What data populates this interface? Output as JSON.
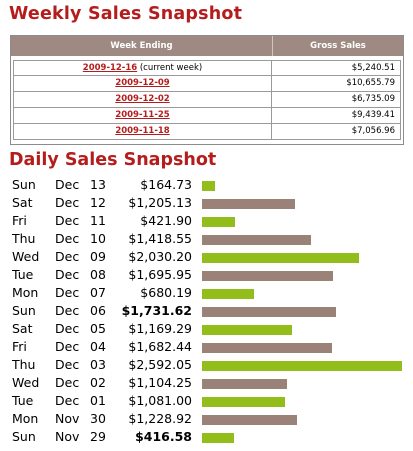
{
  "colors": {
    "title_red": "#b51d1d",
    "header_bg": "#9e8a82",
    "link_red": "#b51d1d",
    "bar_green": "#93bd1a",
    "bar_brown": "#9a8279"
  },
  "weekly": {
    "title": "Weekly Sales Snapshot",
    "col_week": "Week Ending",
    "col_gross": "Gross Sales",
    "rows": [
      {
        "date": "2009-12-16",
        "note": " (current week)",
        "gross": "$5,240.51"
      },
      {
        "date": "2009-12-09",
        "note": "",
        "gross": "$10,655.79"
      },
      {
        "date": "2009-12-02",
        "note": "",
        "gross": "$6,735.09"
      },
      {
        "date": "2009-11-25",
        "note": "",
        "gross": "$9,439.41"
      },
      {
        "date": "2009-11-18",
        "note": "",
        "gross": "$7,056.96"
      }
    ]
  },
  "daily": {
    "title": "Daily Sales Snapshot",
    "rows": [
      {
        "dow": "Sun",
        "mon": "Dec",
        "day": "13",
        "amount": "$164.73",
        "value": 164.73,
        "bold": false,
        "color": "green"
      },
      {
        "dow": "Sat",
        "mon": "Dec",
        "day": "12",
        "amount": "$1,205.13",
        "value": 1205.13,
        "bold": false,
        "color": "brown"
      },
      {
        "dow": "Fri",
        "mon": "Dec",
        "day": "11",
        "amount": "$421.90",
        "value": 421.9,
        "bold": false,
        "color": "green"
      },
      {
        "dow": "Thu",
        "mon": "Dec",
        "day": "10",
        "amount": "$1,418.55",
        "value": 1418.55,
        "bold": false,
        "color": "brown"
      },
      {
        "dow": "Wed",
        "mon": "Dec",
        "day": "09",
        "amount": "$2,030.20",
        "value": 2030.2,
        "bold": false,
        "color": "green"
      },
      {
        "dow": "Tue",
        "mon": "Dec",
        "day": "08",
        "amount": "$1,695.95",
        "value": 1695.95,
        "bold": false,
        "color": "brown"
      },
      {
        "dow": "Mon",
        "mon": "Dec",
        "day": "07",
        "amount": "$680.19",
        "value": 680.19,
        "bold": false,
        "color": "green"
      },
      {
        "dow": "Sun",
        "mon": "Dec",
        "day": "06",
        "amount": "$1,731.62",
        "value": 1731.62,
        "bold": true,
        "color": "brown"
      },
      {
        "dow": "Sat",
        "mon": "Dec",
        "day": "05",
        "amount": "$1,169.29",
        "value": 1169.29,
        "bold": false,
        "color": "green"
      },
      {
        "dow": "Fri",
        "mon": "Dec",
        "day": "04",
        "amount": "$1,682.44",
        "value": 1682.44,
        "bold": false,
        "color": "brown"
      },
      {
        "dow": "Thu",
        "mon": "Dec",
        "day": "03",
        "amount": "$2,592.05",
        "value": 2592.05,
        "bold": false,
        "color": "green"
      },
      {
        "dow": "Wed",
        "mon": "Dec",
        "day": "02",
        "amount": "$1,104.25",
        "value": 1104.25,
        "bold": false,
        "color": "brown"
      },
      {
        "dow": "Tue",
        "mon": "Dec",
        "day": "01",
        "amount": "$1,081.00",
        "value": 1081.0,
        "bold": false,
        "color": "green"
      },
      {
        "dow": "Mon",
        "mon": "Nov",
        "day": "30",
        "amount": "$1,228.92",
        "value": 1228.92,
        "bold": false,
        "color": "brown"
      },
      {
        "dow": "Sun",
        "mon": "Nov",
        "day": "29",
        "amount": "$416.58",
        "value": 416.58,
        "bold": true,
        "color": "green"
      }
    ]
  }
}
